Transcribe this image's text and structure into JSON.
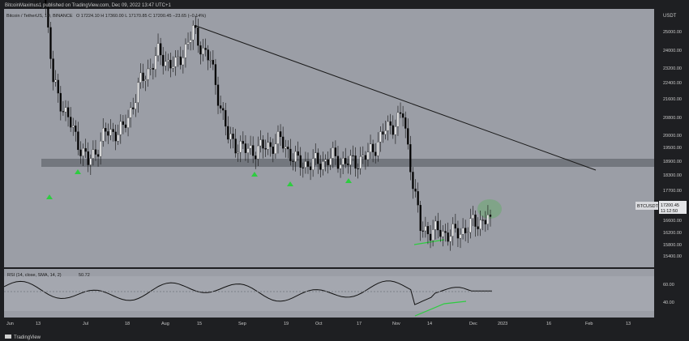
{
  "header": {
    "publisher": "BitcoinMaximus1 published on TradingView.com, Dec 09, 2022 13:47 UTC+1",
    "symbol_title": "Bitcoin / TetherUS, 1D, BINANCE",
    "ohlc": "O 17224.10  H 17360.00  L 17170.85  C 17200.45  −23.65 (−0.14%)"
  },
  "price_axis": {
    "currency": "USDT",
    "ticks": [
      "25000.00",
      "24000.00",
      "23200.00",
      "22400.00",
      "21600.00",
      "20800.00",
      "20000.00",
      "19500.00",
      "18900.00",
      "18300.00",
      "17700.00",
      "17200.45",
      "16600.00",
      "16200.00",
      "15800.00",
      "15400.00"
    ],
    "last_label": "BTCUSDT",
    "last_price": "17200.45",
    "countdown": "11:12:50"
  },
  "rsi": {
    "title": "RSI (14, close, SMA, 14, 2)",
    "value": "50.72",
    "ticks": [
      "60.00",
      "40.00"
    ]
  },
  "time_axis": {
    "ticks": [
      "Jun",
      "13",
      "Jul",
      "18",
      "Aug",
      "15",
      "Sep",
      "19",
      "Oct",
      "17",
      "Nov",
      "14",
      "Dec",
      "2023",
      "16",
      "Feb",
      "13"
    ]
  },
  "footer": {
    "brand": "TradingView"
  },
  "colors": {
    "panel_bg": "#9b9ea6",
    "axis_bg": "#1e1f22",
    "candle_up": "#ffffff",
    "candle_down": "#000000",
    "support_zone": "#6f727a",
    "marker": "#2ecc40",
    "highlight": "#4caf50"
  },
  "chart_data": {
    "type": "candlestick",
    "title": "Bitcoin / TetherUS, 1D, BINANCE",
    "ylim": [
      15200,
      25400
    ],
    "x": [
      "Jun 6",
      "Jun 13",
      "Jun 20",
      "Jun 27",
      "Jul 4",
      "Jul 11",
      "Jul 18",
      "Jul 25",
      "Aug 1",
      "Aug 8",
      "Aug 15",
      "Aug 22",
      "Aug 29",
      "Sep 5",
      "Sep 12",
      "Sep 19",
      "Sep 26",
      "Oct 3",
      "Oct 10",
      "Oct 17",
      "Oct 24",
      "Oct 31",
      "Nov 7",
      "Nov 14",
      "Nov 21",
      "Nov 28",
      "Dec 5"
    ],
    "close": [
      29500,
      22500,
      20800,
      19300,
      20500,
      20600,
      22500,
      23600,
      23100,
      24500,
      23300,
      20300,
      19800,
      19900,
      20200,
      19300,
      19300,
      19500,
      19300,
      19600,
      20600,
      21200,
      16700,
      16600,
      16500,
      16900,
      17200
    ],
    "support_zone": [
      18600,
      19000
    ],
    "trendline": {
      "from": [
        "Aug 15",
        25100
      ],
      "to": [
        "Jan 2",
        18600
      ]
    },
    "rsi_latest": 50.72
  }
}
